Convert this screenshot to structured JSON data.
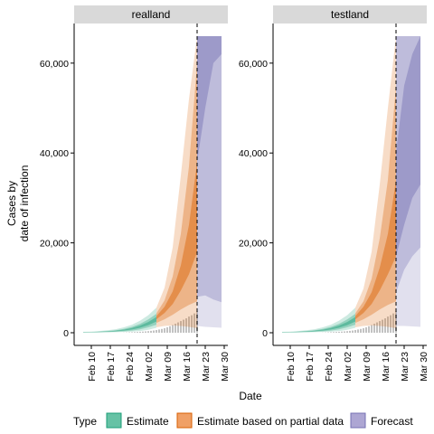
{
  "chart_data": {
    "type": "area",
    "ylabel_lines": [
      "Cases by",
      "date of infection"
    ],
    "xlabel": "Date",
    "y_range": [
      0,
      66000
    ],
    "y_ticks": [
      0,
      20000,
      40000,
      60000
    ],
    "y_tick_labels": [
      "0",
      "20,000",
      "40,000",
      "60,000"
    ],
    "x_range": [
      "2020-02-05",
      "2020-03-30"
    ],
    "x_ticks": [
      "2020-02-10",
      "2020-02-17",
      "2020-02-24",
      "2020-03-02",
      "2020-03-09",
      "2020-03-16",
      "2020-03-23",
      "2020-03-30"
    ],
    "x_tick_labels": [
      "Feb 10",
      "Feb 17",
      "Feb 24",
      "Mar 02",
      "Mar 09",
      "Mar 16",
      "Mar 23",
      "Mar 30"
    ],
    "vline_date": "2020-03-20",
    "grid": false,
    "legend": {
      "title": "Type",
      "position": "bottom",
      "items": [
        {
          "label": "Estimate",
          "color": "#66C2A5",
          "border": "#1B9E77"
        },
        {
          "label": "Estimate based on partial data",
          "color": "#F0A066",
          "border": "#D95F02"
        },
        {
          "label": "Forecast",
          "color": "#ADA6D3",
          "border": "#7570B3"
        }
      ]
    },
    "colors": {
      "estimate": "#1B9E77",
      "partial": "#D95F02",
      "forecast": "#7570B3",
      "bars": "#b5b5b5",
      "strip": "#d9d9d9"
    },
    "panels": [
      {
        "title": "realland",
        "estimate": {
          "dates": [
            "2020-02-07",
            "2020-02-10",
            "2020-02-13",
            "2020-02-16",
            "2020-02-19",
            "2020-02-22",
            "2020-02-25",
            "2020-02-28",
            "2020-03-02",
            "2020-03-05"
          ],
          "q05": [
            50,
            60,
            80,
            100,
            130,
            180,
            250,
            380,
            650,
            1100
          ],
          "q20": [
            70,
            90,
            120,
            160,
            220,
            320,
            480,
            750,
            1200,
            1800
          ],
          "q35": [
            90,
            120,
            160,
            220,
            320,
            480,
            720,
            1100,
            1700,
            2500
          ],
          "q50": [
            100,
            140,
            190,
            260,
            380,
            580,
            880,
            1350,
            2000,
            3000
          ],
          "q65": [
            115,
            160,
            220,
            310,
            450,
            690,
            1050,
            1600,
            2400,
            3500
          ],
          "q80": [
            140,
            190,
            270,
            390,
            560,
            860,
            1300,
            2000,
            2950,
            4200
          ],
          "q95": [
            200,
            270,
            380,
            540,
            780,
            1200,
            1800,
            2700,
            3900,
            5600
          ]
        },
        "partial": {
          "dates": [
            "2020-03-05",
            "2020-03-08",
            "2020-03-11",
            "2020-03-14",
            "2020-03-17",
            "2020-03-20"
          ],
          "q05": [
            1200,
            1500,
            1600,
            1500,
            1300,
            1000
          ],
          "q20": [
            2200,
            3000,
            4000,
            5200,
            6200,
            7000
          ],
          "q35": [
            3000,
            4400,
            6400,
            9400,
            13000,
            18000
          ],
          "q50": [
            3300,
            5000,
            7600,
            12000,
            18000,
            27000
          ],
          "q65": [
            3700,
            5800,
            9200,
            15000,
            24000,
            38000
          ],
          "q80": [
            4300,
            7200,
            12500,
            22000,
            37000,
            60000
          ],
          "q95": [
            5600,
            10000,
            19000,
            35000,
            52000,
            66000
          ]
        },
        "forecast": {
          "dates": [
            "2020-03-20",
            "2020-03-23",
            "2020-03-26",
            "2020-03-29"
          ],
          "q05": [
            1500,
            1300,
            1200,
            1100
          ],
          "q20": [
            8000,
            8300,
            7400,
            6800
          ],
          "q35": [
            38000,
            50000,
            60000,
            62000
          ],
          "q50": [
            62000,
            66000,
            66000,
            66000
          ],
          "q65": [
            66000,
            66000,
            66000,
            66000
          ],
          "q80": [
            66000,
            66000,
            66000,
            66000
          ],
          "q95": [
            66000,
            66000,
            66000,
            66000
          ]
        },
        "reports": {
          "dates": [
            "2020-02-22",
            "2020-02-23",
            "2020-02-24",
            "2020-02-25",
            "2020-02-26",
            "2020-02-27",
            "2020-02-28",
            "2020-02-29",
            "2020-03-01",
            "2020-03-02",
            "2020-03-03",
            "2020-03-04",
            "2020-03-05",
            "2020-03-06",
            "2020-03-07",
            "2020-03-08",
            "2020-03-09",
            "2020-03-10",
            "2020-03-11",
            "2020-03-12",
            "2020-03-13",
            "2020-03-14",
            "2020-03-15",
            "2020-03-16",
            "2020-03-17",
            "2020-03-18",
            "2020-03-19",
            "2020-03-20"
          ],
          "values": [
            30,
            60,
            90,
            120,
            150,
            180,
            220,
            260,
            300,
            350,
            420,
            500,
            600,
            720,
            850,
            1000,
            1200,
            1450,
            1700,
            2000,
            2300,
            2600,
            2900,
            3200,
            3600,
            3900,
            4300,
            4800
          ]
        }
      },
      {
        "title": "testland",
        "estimate": {
          "dates": [
            "2020-02-07",
            "2020-02-10",
            "2020-02-13",
            "2020-02-16",
            "2020-02-19",
            "2020-02-22",
            "2020-02-25",
            "2020-02-28",
            "2020-03-02",
            "2020-03-05"
          ],
          "q05": [
            50,
            60,
            80,
            100,
            130,
            180,
            250,
            380,
            650,
            1100
          ],
          "q20": [
            70,
            90,
            120,
            160,
            220,
            320,
            480,
            750,
            1200,
            1800
          ],
          "q35": [
            90,
            120,
            160,
            220,
            320,
            480,
            720,
            1100,
            1700,
            2500
          ],
          "q50": [
            100,
            140,
            190,
            260,
            380,
            580,
            880,
            1350,
            2000,
            3000
          ],
          "q65": [
            115,
            160,
            220,
            310,
            450,
            690,
            1050,
            1600,
            2400,
            3500
          ],
          "q80": [
            140,
            190,
            270,
            390,
            560,
            860,
            1300,
            2000,
            2950,
            4200
          ],
          "q95": [
            200,
            270,
            380,
            540,
            780,
            1200,
            1800,
            2700,
            3900,
            5600
          ]
        },
        "partial": {
          "dates": [
            "2020-03-05",
            "2020-03-08",
            "2020-03-11",
            "2020-03-14",
            "2020-03-17",
            "2020-03-20"
          ],
          "q05": [
            1200,
            1500,
            1600,
            1500,
            1300,
            1000
          ],
          "q20": [
            2200,
            3000,
            4000,
            5200,
            6200,
            7000
          ],
          "q35": [
            3000,
            4400,
            6400,
            9400,
            13000,
            17000
          ],
          "q50": [
            3300,
            5000,
            7500,
            11500,
            17000,
            25000
          ],
          "q65": [
            3700,
            5800,
            9000,
            14500,
            22000,
            34000
          ],
          "q80": [
            4300,
            7000,
            12000,
            21000,
            34000,
            55000
          ],
          "q95": [
            5600,
            9800,
            18000,
            33000,
            50000,
            66000
          ]
        },
        "forecast": {
          "dates": [
            "2020-03-20",
            "2020-03-23",
            "2020-03-26",
            "2020-03-29"
          ],
          "q05": [
            1500,
            1500,
            1400,
            1300
          ],
          "q20": [
            9000,
            14000,
            17000,
            19000
          ],
          "q35": [
            17000,
            24000,
            30000,
            33000
          ],
          "q50": [
            26000,
            34000,
            42000,
            46000
          ],
          "q65": [
            40000,
            55000,
            62000,
            66000
          ],
          "q80": [
            66000,
            66000,
            66000,
            66000
          ],
          "q95": [
            66000,
            66000,
            66000,
            66000
          ]
        },
        "reports": {
          "dates": [
            "2020-02-22",
            "2020-02-23",
            "2020-02-24",
            "2020-02-25",
            "2020-02-26",
            "2020-02-27",
            "2020-02-28",
            "2020-02-29",
            "2020-03-01",
            "2020-03-02",
            "2020-03-03",
            "2020-03-04",
            "2020-03-05",
            "2020-03-06",
            "2020-03-07",
            "2020-03-08",
            "2020-03-09",
            "2020-03-10",
            "2020-03-11",
            "2020-03-12",
            "2020-03-13",
            "2020-03-14",
            "2020-03-15",
            "2020-03-16",
            "2020-03-17",
            "2020-03-18",
            "2020-03-19",
            "2020-03-20"
          ],
          "values": [
            30,
            60,
            90,
            120,
            150,
            180,
            220,
            260,
            300,
            350,
            420,
            500,
            600,
            720,
            850,
            1000,
            1200,
            1450,
            1700,
            2000,
            2300,
            2600,
            2900,
            3200,
            3600,
            3900,
            4300,
            4800
          ]
        }
      }
    ]
  }
}
